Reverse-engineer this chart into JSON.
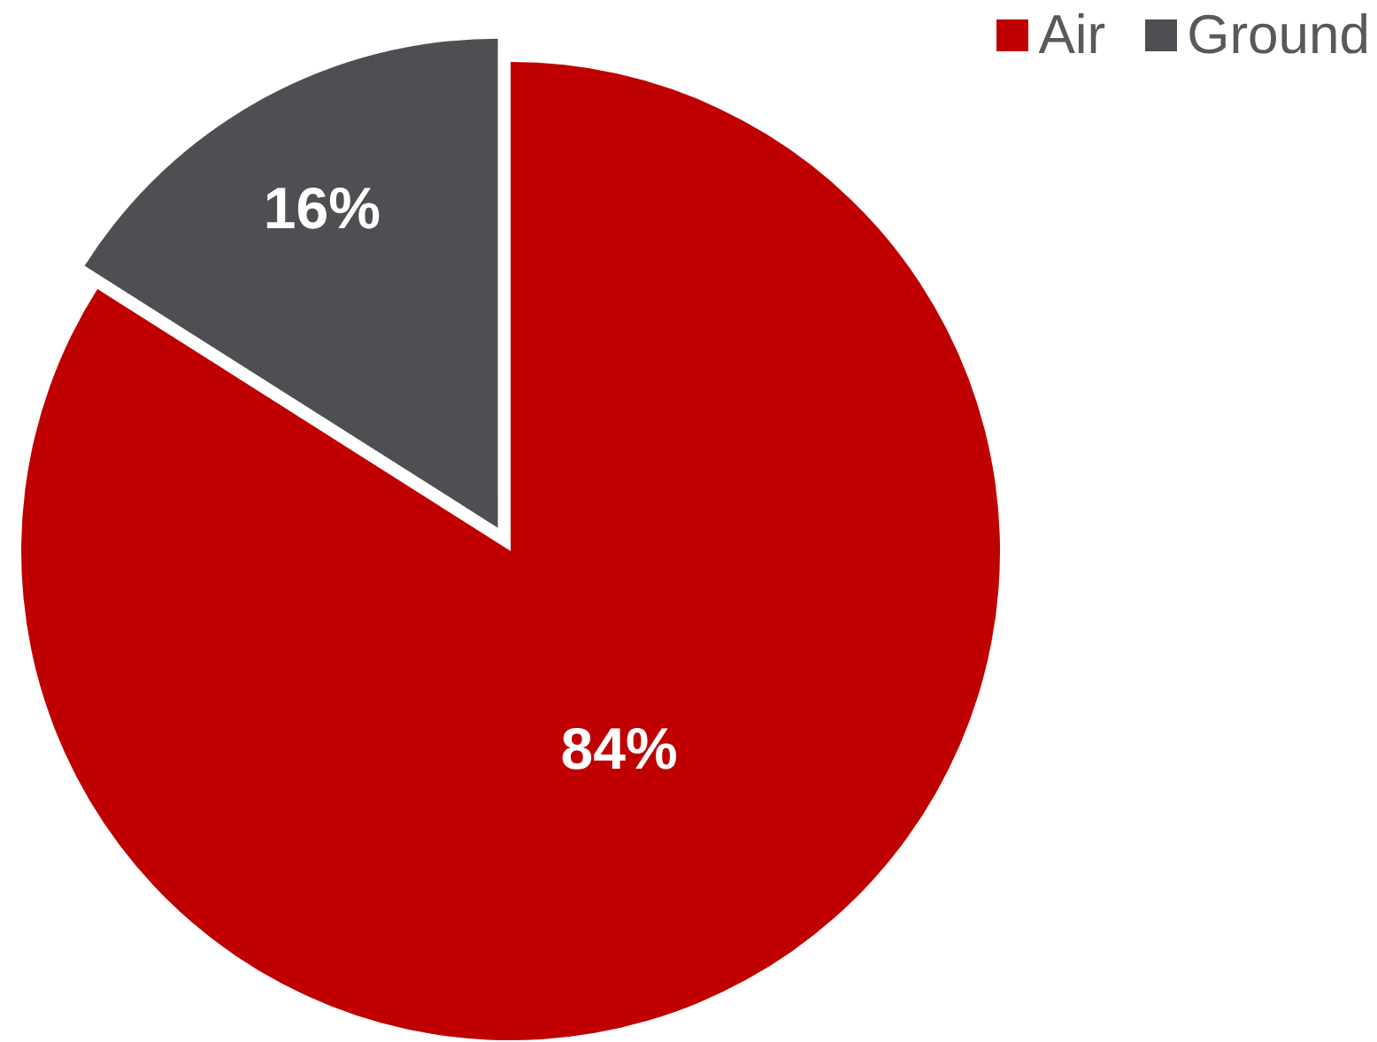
{
  "chart_data": {
    "type": "pie",
    "categories": [
      "Air",
      "Ground"
    ],
    "values": [
      84,
      16
    ],
    "colors": [
      "#c00000",
      "#4d4f53"
    ],
    "value_labels": [
      "84%",
      "16%"
    ],
    "legend": "top right"
  }
}
